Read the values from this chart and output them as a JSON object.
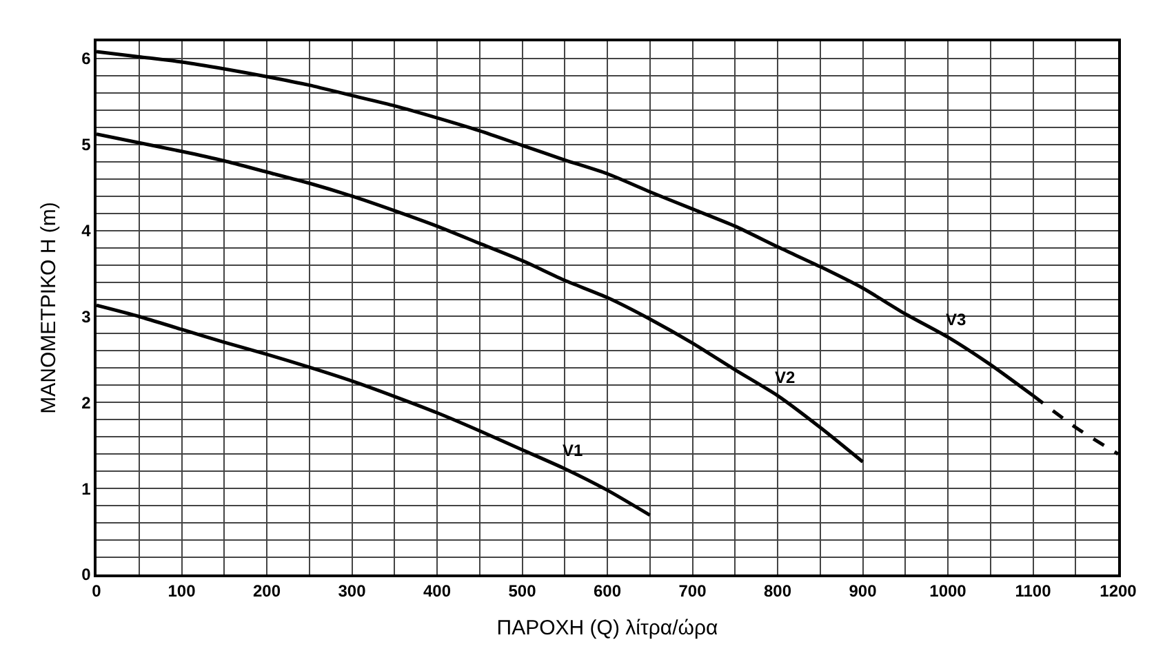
{
  "chart_data": {
    "type": "line",
    "xlabel": "ΠΑΡΟΧΗ (Q) λίτρα/ώρα",
    "ylabel": "ΜΑΝΟΜΕΤΡΙΚΟ Η (m)",
    "xlim": [
      0,
      1200
    ],
    "ylim": [
      0,
      6.2
    ],
    "xticks": [
      0,
      {
        "value": 50,
        "label": null
      },
      100,
      {
        "value": 150,
        "label": null
      },
      200,
      {
        "value": 250,
        "label": null
      },
      300,
      {
        "value": 350,
        "label": null
      },
      400,
      {
        "value": 450,
        "label": null
      },
      500,
      {
        "value": 550,
        "label": null
      },
      600,
      {
        "value": 650,
        "label": null
      },
      700,
      {
        "value": 750,
        "label": null
      },
      800,
      {
        "value": 850,
        "label": null
      },
      900,
      {
        "value": 950,
        "label": null
      },
      1000,
      {
        "value": 1050,
        "label": null
      },
      1100,
      {
        "value": 1150,
        "label": null
      },
      1200
    ],
    "yticks": [
      0,
      {
        "value": 0.2,
        "label": null
      },
      {
        "value": 0.4,
        "label": null
      },
      {
        "value": 0.6,
        "label": null
      },
      {
        "value": 0.8,
        "label": null
      },
      1,
      {
        "value": 1.2,
        "label": null
      },
      {
        "value": 1.4,
        "label": null
      },
      {
        "value": 1.6,
        "label": null
      },
      {
        "value": 1.8,
        "label": null
      },
      2,
      {
        "value": 2.2,
        "label": null
      },
      {
        "value": 2.4,
        "label": null
      },
      {
        "value": 2.6,
        "label": null
      },
      {
        "value": 2.8,
        "label": null
      },
      3,
      {
        "value": 3.2,
        "label": null
      },
      {
        "value": 3.4,
        "label": null
      },
      {
        "value": 3.6,
        "label": null
      },
      {
        "value": 3.8,
        "label": null
      },
      4,
      {
        "value": 4.2,
        "label": null
      },
      {
        "value": 4.4,
        "label": null
      },
      {
        "value": 4.6,
        "label": null
      },
      {
        "value": 4.8,
        "label": null
      },
      5,
      {
        "value": 5.2,
        "label": null
      },
      {
        "value": 5.4,
        "label": null
      },
      {
        "value": 5.6,
        "label": null
      },
      {
        "value": 5.8,
        "label": null
      },
      6,
      {
        "value": 6.2,
        "label": null
      }
    ],
    "grid": true,
    "legend": false,
    "marker": "none",
    "line_style": "solid",
    "series": [
      {
        "name": "V1",
        "color": "#000000",
        "x": [
          0,
          50,
          100,
          150,
          200,
          250,
          300,
          350,
          400,
          450,
          500,
          550,
          600,
          650
        ],
        "values": [
          3.13,
          3.0,
          2.85,
          2.7,
          2.56,
          2.41,
          2.25,
          2.07,
          1.88,
          1.67,
          1.45,
          1.23,
          0.98,
          0.69
        ]
      },
      {
        "name": "V2",
        "color": "#000000",
        "x": [
          0,
          50,
          100,
          150,
          200,
          250,
          300,
          350,
          400,
          450,
          500,
          550,
          600,
          650,
          700,
          750,
          800,
          850,
          900
        ],
        "values": [
          5.12,
          5.02,
          4.92,
          4.81,
          4.68,
          4.55,
          4.4,
          4.23,
          4.05,
          3.85,
          3.65,
          3.42,
          3.22,
          2.97,
          2.69,
          2.38,
          2.08,
          1.71,
          1.31
        ]
      },
      {
        "name": "V3",
        "color": "#000000",
        "x": [
          0,
          50,
          100,
          150,
          200,
          250,
          300,
          350,
          400,
          450,
          500,
          550,
          600,
          650,
          700,
          750,
          800,
          850,
          900,
          950,
          1000,
          1050,
          1100
        ],
        "values": [
          6.08,
          6.02,
          5.96,
          5.88,
          5.79,
          5.69,
          5.57,
          5.45,
          5.31,
          5.16,
          4.99,
          4.82,
          4.66,
          4.45,
          4.25,
          4.05,
          3.81,
          3.58,
          3.33,
          3.03,
          2.76,
          2.44,
          2.08
        ]
      },
      {
        "color": "#000000",
        "line_style": "dashed",
        "x": [
          1100,
          1150,
          1200
        ],
        "values": [
          2.08,
          1.71,
          1.4
        ]
      }
    ]
  }
}
